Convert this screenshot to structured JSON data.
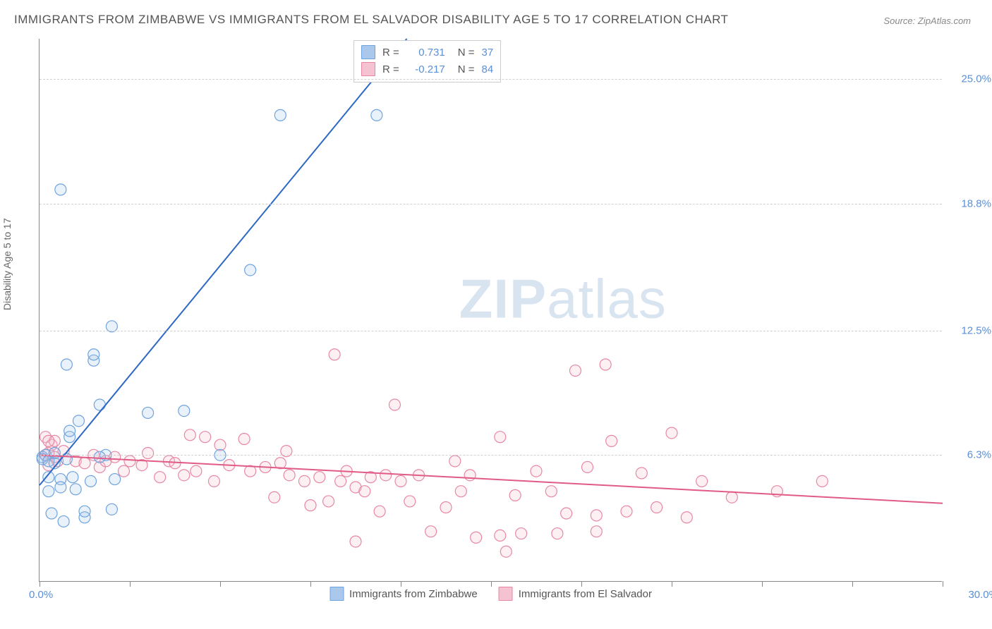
{
  "title": "IMMIGRANTS FROM ZIMBABWE VS IMMIGRANTS FROM EL SALVADOR DISABILITY AGE 5 TO 17 CORRELATION CHART",
  "source": "Source: ZipAtlas.com",
  "ylabel": "Disability Age 5 to 17",
  "watermark_zip": "ZIP",
  "watermark_atlas": "atlas",
  "chart": {
    "type": "scatter",
    "background_color": "#ffffff",
    "grid_color": "#d0d0d0",
    "axis_color": "#888888",
    "xlim": [
      0,
      30
    ],
    "ylim": [
      0,
      27
    ],
    "xtick_labels": {
      "min": "0.0%",
      "max": "30.0%"
    },
    "xtick_positions": [
      0,
      3,
      6,
      9,
      12,
      15,
      18,
      21,
      24,
      27,
      30
    ],
    "ytick_labels": [
      "6.3%",
      "12.5%",
      "18.8%",
      "25.0%"
    ],
    "ytick_positions": [
      6.3,
      12.5,
      18.8,
      25.0
    ],
    "marker_radius": 8,
    "marker_fill_opacity": 0.25,
    "marker_stroke_width": 1.2,
    "line_width": 2,
    "series": [
      {
        "name": "Immigrants from Zimbabwe",
        "color_fill": "#a9c8ec",
        "color_stroke": "#6fa3dd",
        "line_color": "#2d68c4",
        "R": "0.731",
        "N": "37",
        "regression": {
          "x1": 0,
          "y1": 4.8,
          "x2": 12.2,
          "y2": 27
        },
        "points": [
          [
            0.1,
            6.2
          ],
          [
            0.1,
            6.1
          ],
          [
            0.2,
            6.3
          ],
          [
            0.3,
            6.0
          ],
          [
            0.3,
            5.2
          ],
          [
            0.3,
            4.5
          ],
          [
            0.5,
            5.9
          ],
          [
            0.5,
            6.4
          ],
          [
            0.7,
            5.1
          ],
          [
            0.7,
            4.7
          ],
          [
            0.8,
            3.0
          ],
          [
            0.9,
            6.1
          ],
          [
            0.4,
            3.4
          ],
          [
            1.0,
            7.2
          ],
          [
            1.0,
            7.5
          ],
          [
            1.1,
            5.2
          ],
          [
            1.2,
            4.6
          ],
          [
            1.3,
            8.0
          ],
          [
            1.5,
            3.2
          ],
          [
            1.5,
            3.5
          ],
          [
            1.7,
            5.0
          ],
          [
            1.8,
            11.0
          ],
          [
            1.8,
            11.3
          ],
          [
            2.0,
            8.8
          ],
          [
            2.2,
            6.3
          ],
          [
            2.4,
            3.6
          ],
          [
            2.4,
            12.7
          ],
          [
            0.7,
            19.5
          ],
          [
            0.9,
            10.8
          ],
          [
            2.0,
            6.2
          ],
          [
            2.5,
            5.1
          ],
          [
            3.6,
            8.4
          ],
          [
            4.8,
            8.5
          ],
          [
            6.0,
            6.3
          ],
          [
            7.0,
            15.5
          ],
          [
            8.0,
            23.2
          ],
          [
            11.2,
            23.2
          ]
        ]
      },
      {
        "name": "Immigrants from El Salvador",
        "color_fill": "#f4c2d0",
        "color_stroke": "#e887a5",
        "line_color": "#e05b86",
        "R": "-0.217",
        "N": "84",
        "regression": {
          "x1": 0,
          "y1": 6.3,
          "x2": 30,
          "y2": 3.9
        },
        "points": [
          [
            0.2,
            6.3
          ],
          [
            0.3,
            6.4
          ],
          [
            0.5,
            6.2
          ],
          [
            0.8,
            6.5
          ],
          [
            0.4,
            6.8
          ],
          [
            0.6,
            6.0
          ],
          [
            0.3,
            5.8
          ],
          [
            1.2,
            6.0
          ],
          [
            1.5,
            5.9
          ],
          [
            1.8,
            6.3
          ],
          [
            2.0,
            5.7
          ],
          [
            2.2,
            6.0
          ],
          [
            2.5,
            6.2
          ],
          [
            2.8,
            5.5
          ],
          [
            3.0,
            6.0
          ],
          [
            3.4,
            5.8
          ],
          [
            3.6,
            6.4
          ],
          [
            0.5,
            7.0
          ],
          [
            0.2,
            7.2
          ],
          [
            0.3,
            7.0
          ],
          [
            4.0,
            5.2
          ],
          [
            4.3,
            6.0
          ],
          [
            4.5,
            5.9
          ],
          [
            4.8,
            5.3
          ],
          [
            5.0,
            7.3
          ],
          [
            5.2,
            5.5
          ],
          [
            5.5,
            7.2
          ],
          [
            5.8,
            5.0
          ],
          [
            6.0,
            6.8
          ],
          [
            6.3,
            5.8
          ],
          [
            6.8,
            7.1
          ],
          [
            7.0,
            5.5
          ],
          [
            7.5,
            5.7
          ],
          [
            7.8,
            4.2
          ],
          [
            8.0,
            5.9
          ],
          [
            8.2,
            6.5
          ],
          [
            8.3,
            5.3
          ],
          [
            8.8,
            5.0
          ],
          [
            9.0,
            3.8
          ],
          [
            9.3,
            5.2
          ],
          [
            9.6,
            4.0
          ],
          [
            9.8,
            11.3
          ],
          [
            10.0,
            5.0
          ],
          [
            10.2,
            5.5
          ],
          [
            10.5,
            4.7
          ],
          [
            10.5,
            2.0
          ],
          [
            10.8,
            4.5
          ],
          [
            11.0,
            5.2
          ],
          [
            11.3,
            3.5
          ],
          [
            11.5,
            5.3
          ],
          [
            11.8,
            8.8
          ],
          [
            12.0,
            5.0
          ],
          [
            12.3,
            4.0
          ],
          [
            12.6,
            5.3
          ],
          [
            13.0,
            2.5
          ],
          [
            13.5,
            3.7
          ],
          [
            13.8,
            6.0
          ],
          [
            14.0,
            4.5
          ],
          [
            14.3,
            5.3
          ],
          [
            14.5,
            2.2
          ],
          [
            15.3,
            7.2
          ],
          [
            15.3,
            2.3
          ],
          [
            15.8,
            4.3
          ],
          [
            15.5,
            1.5
          ],
          [
            16.0,
            2.4
          ],
          [
            16.5,
            5.5
          ],
          [
            17.0,
            4.5
          ],
          [
            17.2,
            2.4
          ],
          [
            17.5,
            3.4
          ],
          [
            17.8,
            10.5
          ],
          [
            18.2,
            5.7
          ],
          [
            18.5,
            3.3
          ],
          [
            18.8,
            10.8
          ],
          [
            19.0,
            7.0
          ],
          [
            18.5,
            2.5
          ],
          [
            20.0,
            5.4
          ],
          [
            20.5,
            3.7
          ],
          [
            21.0,
            7.4
          ],
          [
            21.5,
            3.2
          ],
          [
            22.0,
            5.0
          ],
          [
            23.0,
            4.2
          ],
          [
            24.5,
            4.5
          ],
          [
            26.0,
            5.0
          ],
          [
            19.5,
            3.5
          ]
        ]
      }
    ]
  },
  "legend": {
    "swatch_size": 20,
    "border_color": "#cccccc"
  }
}
